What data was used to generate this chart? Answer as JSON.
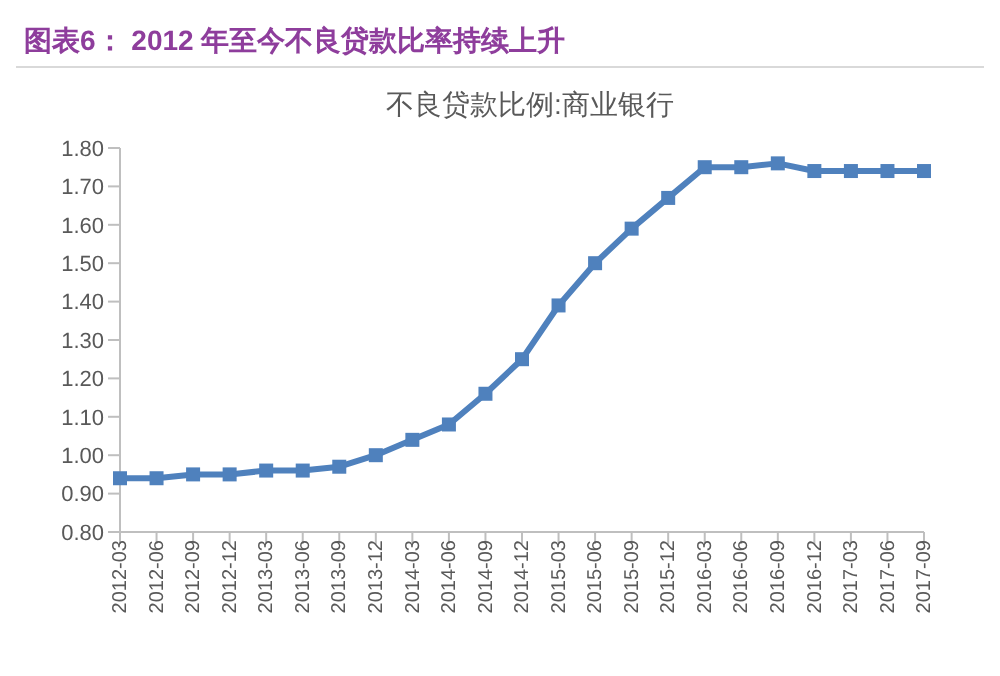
{
  "chart_data": {
    "type": "line",
    "title": "图表6： 2012 年至今不良贷款比率持续上升",
    "subtitle": "不良贷款比例:商业银行",
    "categories": [
      "2012-03",
      "2012-06",
      "2012-09",
      "2012-12",
      "2013-03",
      "2013-06",
      "2013-09",
      "2013-12",
      "2014-03",
      "2014-06",
      "2014-09",
      "2014-12",
      "2015-03",
      "2015-06",
      "2015-09",
      "2015-12",
      "2016-03",
      "2016-06",
      "2016-09",
      "2016-12",
      "2017-03",
      "2017-06",
      "2017-09"
    ],
    "series": [
      {
        "color": "#4f81bd",
        "values": [
          0.94,
          0.94,
          0.95,
          0.95,
          0.96,
          0.96,
          0.97,
          1.0,
          1.04,
          1.08,
          1.16,
          1.25,
          1.39,
          1.5,
          1.59,
          1.67,
          1.75,
          1.75,
          1.76,
          1.74,
          1.74,
          1.74,
          1.74
        ]
      }
    ],
    "ylim": [
      0.8,
      1.8
    ],
    "yticks": [
      {
        "value": 0.8,
        "label": "0.80"
      },
      {
        "value": 0.9,
        "label": "0.90"
      },
      {
        "value": 1.0,
        "label": "1.00"
      },
      {
        "value": 1.1,
        "label": "1.10"
      },
      {
        "value": 1.2,
        "label": "1.20"
      },
      {
        "value": 1.3,
        "label": "1.30"
      },
      {
        "value": 1.4,
        "label": "1.40"
      },
      {
        "value": 1.5,
        "label": "1.50"
      },
      {
        "value": 1.6,
        "label": "1.60"
      },
      {
        "value": 1.7,
        "label": "1.70"
      },
      {
        "value": 1.8,
        "label": "1.80"
      }
    ],
    "marker": "square",
    "grid": false,
    "legend": false
  }
}
